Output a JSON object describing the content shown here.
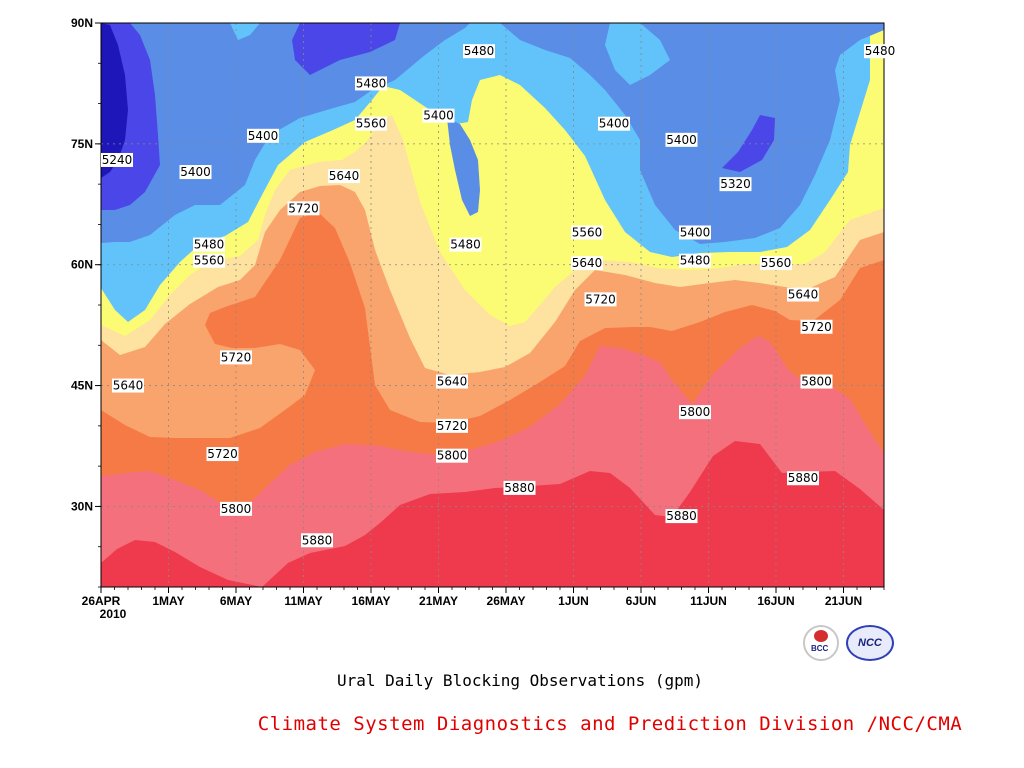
{
  "chart_data": {
    "type": "contour",
    "title": "Ural Daily Blocking Observations (gpm)",
    "credit": "Climate System Diagnostics and Prediction Division /NCC/CMA",
    "x": {
      "ticks": [
        "26APR",
        "1MAY",
        "6MAY",
        "11MAY",
        "16MAY",
        "21MAY",
        "26MAY",
        "1JUN",
        "6JUN",
        "11JUN",
        "16JUN",
        "21JUN"
      ],
      "year_label": "2010",
      "range": [
        "2010-04-26",
        "2010-06-23"
      ]
    },
    "y": {
      "ticks": [
        "30N",
        "45N",
        "60N",
        "75N",
        "90N"
      ],
      "tick_values": [
        30,
        45,
        60,
        75,
        90
      ],
      "range": [
        20,
        90
      ]
    },
    "levels": [
      5240,
      5320,
      5400,
      5480,
      5560,
      5640,
      5720,
      5800,
      5880
    ],
    "level_colors": [
      "#1e16b8",
      "#4b46e8",
      "#5a8ee6",
      "#62c3fb",
      "#fbfc74",
      "#fde2a0",
      "#f9a46c",
      "#f67a46",
      "#f4707c",
      "#ef3a4e"
    ],
    "contour_labels": [
      {
        "text": "5240",
        "date": "2010-04-26",
        "lat": 73.0
      },
      {
        "text": "5400",
        "date": "2010-05-03",
        "lat": 71.5
      },
      {
        "text": "5400",
        "date": "2010-05-08",
        "lat": 76.0
      },
      {
        "text": "5480",
        "date": "2010-05-16",
        "lat": 82.5
      },
      {
        "text": "5400",
        "date": "2010-05-21",
        "lat": 78.5
      },
      {
        "text": "5480",
        "date": "2010-05-24",
        "lat": 86.5
      },
      {
        "text": "5560",
        "date": "2010-05-16",
        "lat": 77.5
      },
      {
        "text": "5640",
        "date": "2010-05-14",
        "lat": 71.0
      },
      {
        "text": "5720",
        "date": "2010-05-11",
        "lat": 67.0
      },
      {
        "text": "5480",
        "date": "2010-05-04",
        "lat": 62.5
      },
      {
        "text": "5560",
        "date": "2010-05-04",
        "lat": 60.5
      },
      {
        "text": "5480",
        "date": "2010-05-23",
        "lat": 62.5
      },
      {
        "text": "5720",
        "date": "2010-05-06",
        "lat": 48.5
      },
      {
        "text": "5640",
        "date": "2010-04-28",
        "lat": 45.0
      },
      {
        "text": "5720",
        "date": "2010-05-05",
        "lat": 36.5
      },
      {
        "text": "5640",
        "date": "2010-05-22",
        "lat": 45.5
      },
      {
        "text": "5720",
        "date": "2010-05-22",
        "lat": 40.0
      },
      {
        "text": "5800",
        "date": "2010-05-22",
        "lat": 36.3
      },
      {
        "text": "5880",
        "date": "2010-05-27",
        "lat": 32.3
      },
      {
        "text": "5800",
        "date": "2010-05-06",
        "lat": 29.7
      },
      {
        "text": "5880",
        "date": "2010-05-12",
        "lat": 25.8
      },
      {
        "text": "5400",
        "date": "2010-06-03",
        "lat": 77.5
      },
      {
        "text": "5400",
        "date": "2010-06-08",
        "lat": 75.5
      },
      {
        "text": "5320",
        "date": "2010-06-12",
        "lat": 70.0
      },
      {
        "text": "5560",
        "date": "2010-06-01",
        "lat": 64.0
      },
      {
        "text": "5400",
        "date": "2010-06-09",
        "lat": 64.0
      },
      {
        "text": "5640",
        "date": "2010-06-01",
        "lat": 60.2
      },
      {
        "text": "5480",
        "date": "2010-06-09",
        "lat": 60.5
      },
      {
        "text": "5720",
        "date": "2010-06-02",
        "lat": 55.7
      },
      {
        "text": "5560",
        "date": "2010-06-15",
        "lat": 60.2
      },
      {
        "text": "5640",
        "date": "2010-06-17",
        "lat": 56.3
      },
      {
        "text": "5720",
        "date": "2010-06-18",
        "lat": 52.3
      },
      {
        "text": "5800",
        "date": "2010-06-18",
        "lat": 45.5
      },
      {
        "text": "5800",
        "date": "2010-06-09",
        "lat": 41.7
      },
      {
        "text": "5880",
        "date": "2010-06-17",
        "lat": 33.5
      },
      {
        "text": "5880",
        "date": "2010-06-08",
        "lat": 28.8
      },
      {
        "text": "5480",
        "date": "2010-06-23",
        "lat": 86.5
      }
    ]
  },
  "logos": {
    "bcc": "BCC",
    "ncc": "NCC"
  },
  "colors": {
    "credit_text": "#e00000",
    "title_text": "#000000"
  }
}
